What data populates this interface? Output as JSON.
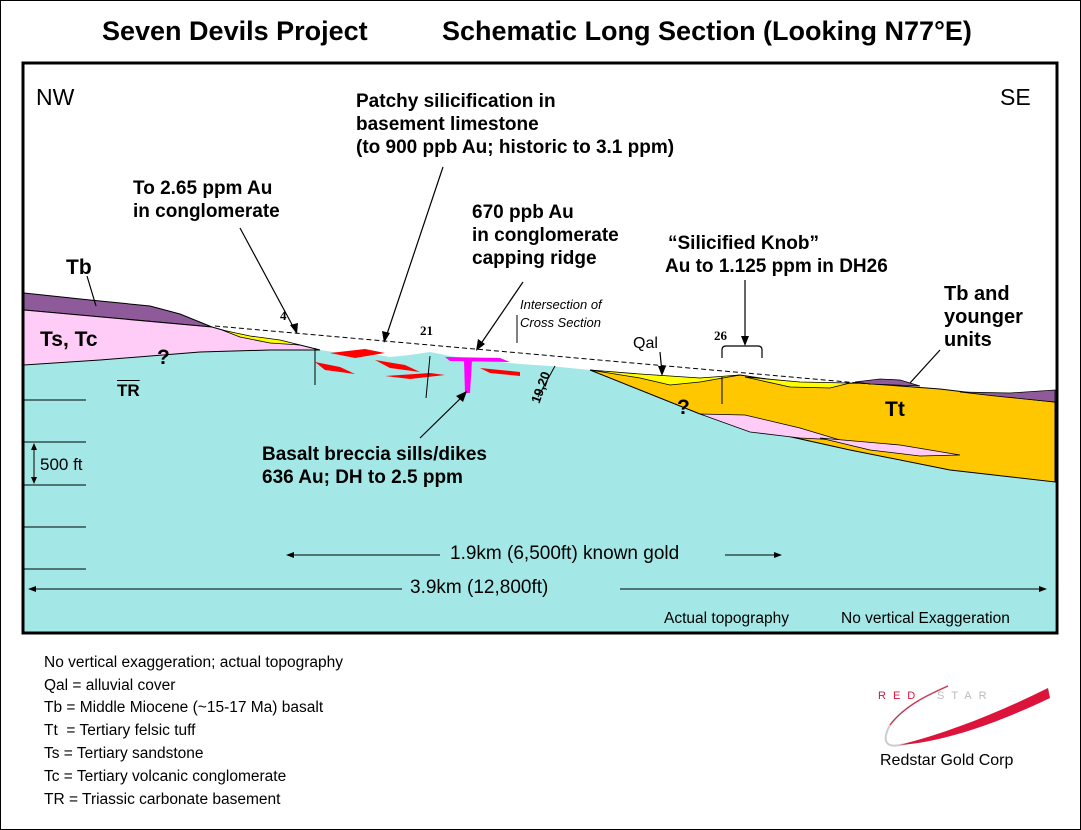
{
  "title_left": "Seven Devils Project",
  "title_right": "Schematic Long Section (Looking N77°E)",
  "corners": {
    "nw": "NW",
    "se": "SE"
  },
  "annotations": {
    "patchy": [
      "Patchy silicification in",
      "basement limestone",
      "(to 900 ppb Au; historic to 3.1 ppm)"
    ],
    "conglomerate": [
      "To 2.65 ppm Au",
      "in conglomerate"
    ],
    "ridge": [
      "670 ppb Au",
      "in conglomerate",
      "capping ridge"
    ],
    "knob": [
      "“Silicified Knob”",
      "Au to 1.125 ppm in DH26"
    ],
    "tb_younger": [
      "Tb and",
      "younger",
      "units"
    ],
    "basalt": [
      "Basalt breccia sills/dikes",
      "636 Au; DH to 2.5 ppm"
    ],
    "intersection": [
      "Intersection of",
      "Cross Section"
    ]
  },
  "unit_labels": {
    "tb": "Tb",
    "ts_tc": "Ts, Tc",
    "tr": "TR",
    "tt": "Tt",
    "qal": "Qal",
    "q1": "?",
    "q2": "?"
  },
  "drillholes": {
    "dh4": "4",
    "dh21": "21",
    "dh26": "26",
    "dh1920": "19,20"
  },
  "scale": {
    "vertical": "500 ft",
    "known_gold": "1.9km (6,500ft) known gold",
    "total": "3.9km (12,800ft)"
  },
  "footer": {
    "topo": "Actual topography",
    "exag": "No vertical Exaggeration"
  },
  "legend": [
    "No vertical exaggeration; actual topography",
    "Qal = alluvial cover",
    "Tb = Middle Miocene (~15-17 Ma) basalt",
    "Tt  = Tertiary felsic tuff",
    "Ts = Tertiary sandstone",
    "Tc = Tertiary volcanic conglomerate",
    "TR = Triassic carbonate basement"
  ],
  "logo": {
    "wordmark": "REDSTAR",
    "company": "Redstar Gold Corp"
  },
  "colors": {
    "basement": "#a3e8e6",
    "tb": "#8e5a9a",
    "ts": "#ffccf7",
    "tt": "#ffc700",
    "qal": "#ffff00",
    "silic": "#ff0000",
    "basalt": "#ff00ff"
  }
}
